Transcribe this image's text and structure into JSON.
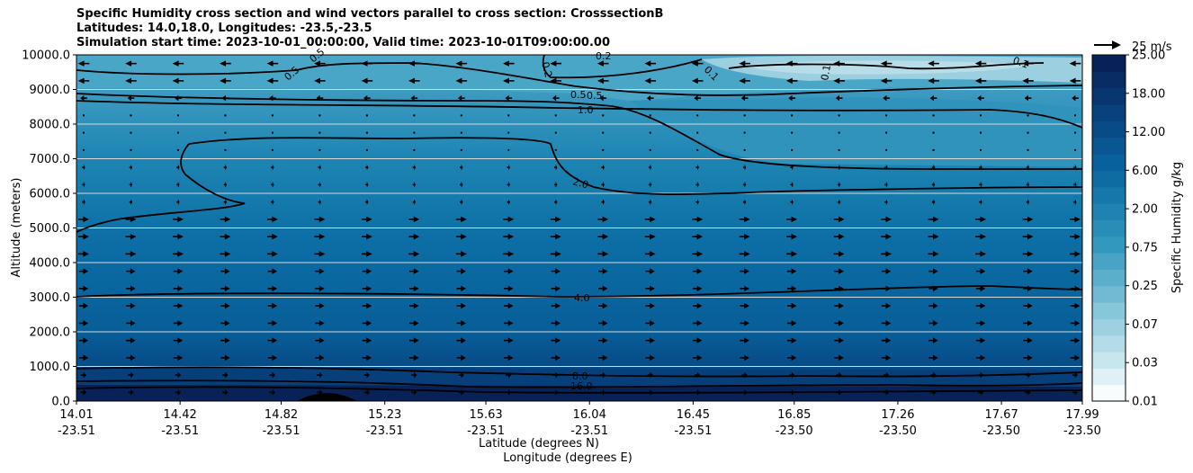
{
  "chart_data": {
    "type": "heatmap",
    "title_lines": [
      "Specific Humidity cross section and wind vectors parallel to cross section: CrosssectionB",
      "Latitudes: 14.0,18.0, Longitudes: -23.5,-23.5",
      "Simulation start time: 2023-10-01_00:00:00, Valid time: 2023-10-01T09:00:00.00"
    ],
    "xlabel_lat": "Latitude (degrees N)",
    "xlabel_lon": "Longitude (degrees E)",
    "ylabel": "Altitude (meters)",
    "ylim": [
      0,
      10000
    ],
    "y_ticks": [
      "0.0",
      "1000.0",
      "2000.0",
      "3000.0",
      "4000.0",
      "5000.0",
      "6000.0",
      "7000.0",
      "8000.0",
      "9000.0",
      "10000.0"
    ],
    "x_ticks": [
      {
        "lat": "14.01",
        "lon": "-23.51"
      },
      {
        "lat": "14.42",
        "lon": "-23.51"
      },
      {
        "lat": "14.82",
        "lon": "-23.51"
      },
      {
        "lat": "15.23",
        "lon": "-23.51"
      },
      {
        "lat": "15.63",
        "lon": "-23.51"
      },
      {
        "lat": "16.04",
        "lon": "-23.51"
      },
      {
        "lat": "16.45",
        "lon": "-23.51"
      },
      {
        "lat": "16.85",
        "lon": "-23.50"
      },
      {
        "lat": "17.26",
        "lon": "-23.50"
      },
      {
        "lat": "17.67",
        "lon": "-23.50"
      },
      {
        "lat": "17.99",
        "lon": "-23.50"
      }
    ],
    "colorbar": {
      "label": "Specific Humidity g/kg",
      "tick_labels": [
        "0.01",
        "0.03",
        "0.07",
        "0.25",
        "0.75",
        "2.00",
        "6.00",
        "12.00",
        "18.00",
        "25.00"
      ],
      "colors": [
        "#f7fcfd",
        "#e0f1f5",
        "#c8e6ee",
        "#b3dce8",
        "#9dd1e1",
        "#88c6da",
        "#72bad3",
        "#5cafcb",
        "#47a4c4",
        "#3398bd",
        "#2a8db7",
        "#1f82b0",
        "#1677aa",
        "#0e6ca3",
        "#08619c",
        "#085792",
        "#084c87",
        "#08427c",
        "#083770",
        "#082c63",
        "#082257"
      ]
    },
    "contour_labels": [
      "0.1",
      "0.1",
      "0.1",
      "0.2",
      "0.2",
      "0.5",
      "0.5",
      "0.5",
      "0.5",
      "1.0",
      "2.0",
      "4.0",
      "8.0",
      "16.0"
    ],
    "quiver_key": "25 m/s",
    "humidity_layers_g_per_kg": [
      {
        "top_m": 10000,
        "value": 0.1
      },
      {
        "top_m": 9000,
        "value": 0.5
      },
      {
        "top_m": 8600,
        "value": 1.0
      },
      {
        "top_m": 7600,
        "value": 2.0
      },
      {
        "top_m": 5000,
        "value": 3.0
      },
      {
        "top_m": 3000,
        "value": 5.0
      },
      {
        "top_m": 1000,
        "value": 9.0
      },
      {
        "top_m": 500,
        "value": 16.0
      }
    ]
  }
}
